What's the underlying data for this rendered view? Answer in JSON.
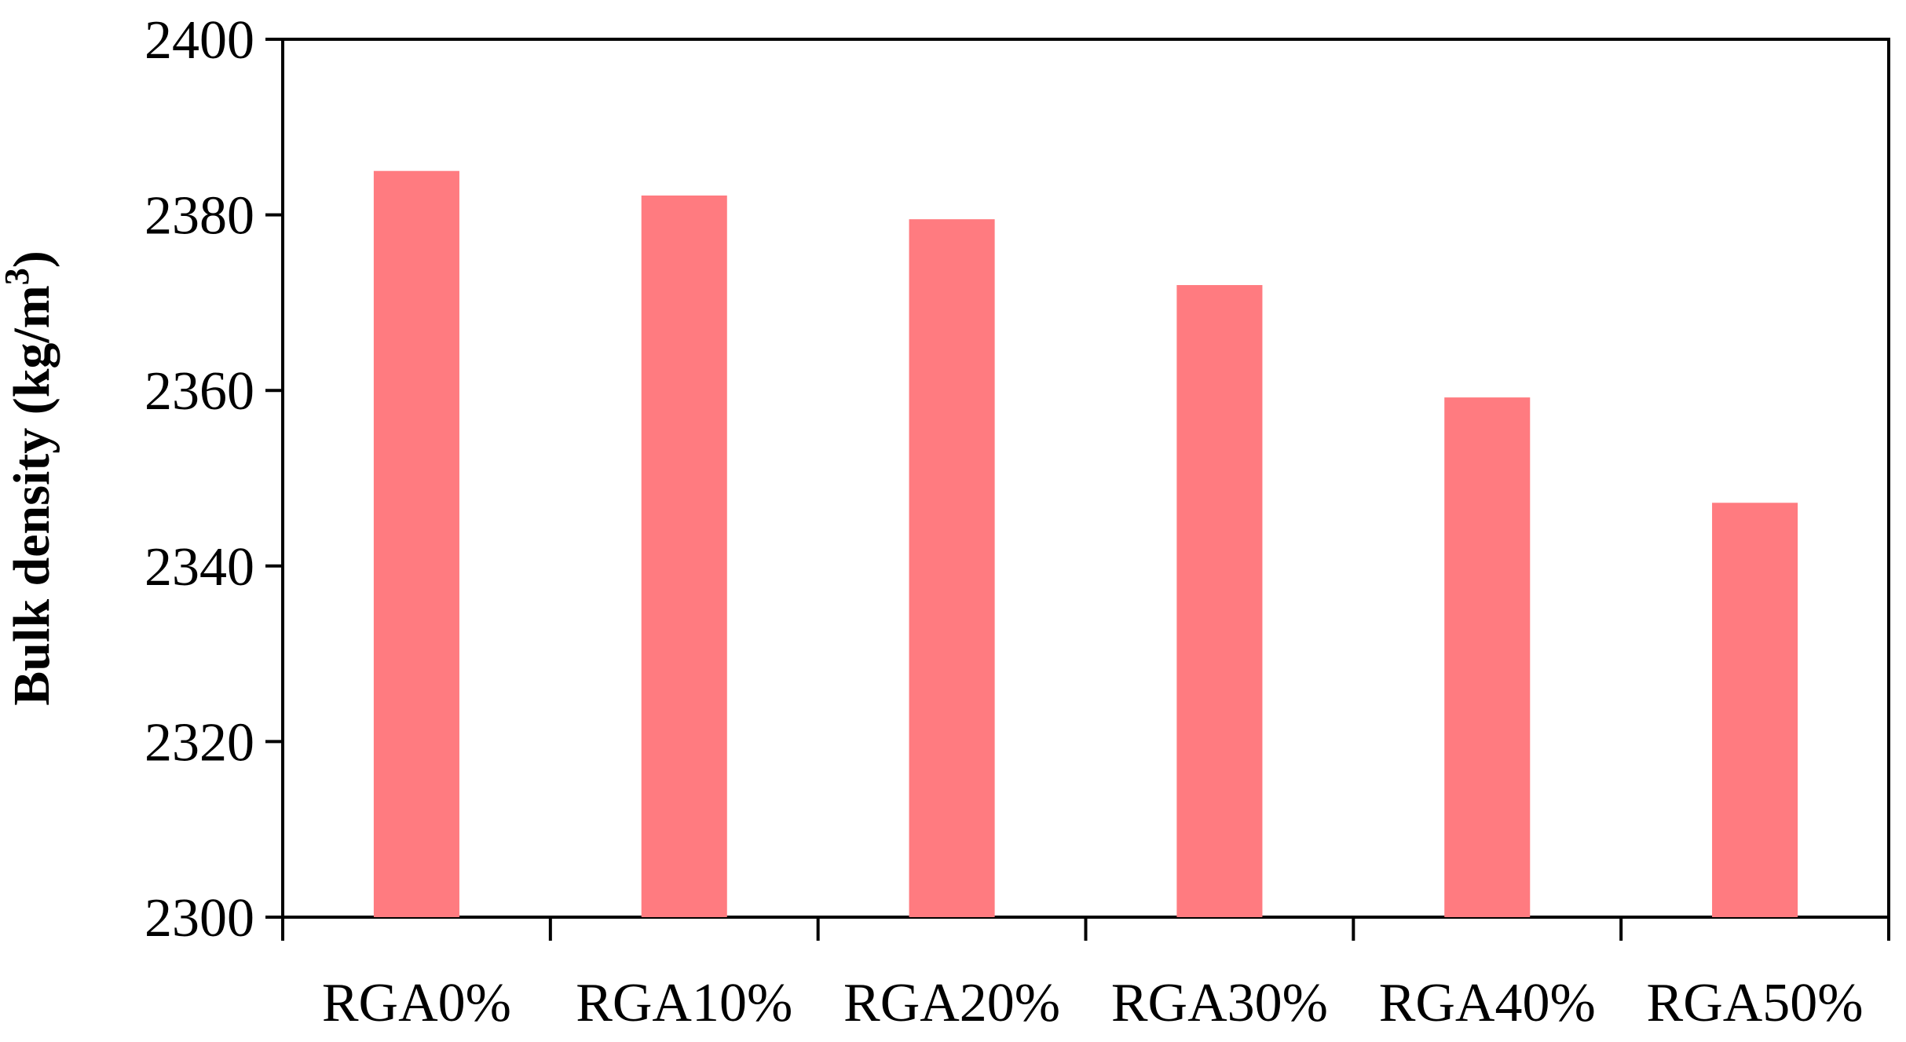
{
  "chart_data": {
    "type": "bar",
    "categories": [
      "RGA0%",
      "RGA10%",
      "RGA20%",
      "RGA30%",
      "RGA40%",
      "RGA50%"
    ],
    "values": [
      2385,
      2382.2,
      2379.5,
      2372,
      2359.2,
      2347.2
    ],
    "xlabel": "",
    "ylabel": "Bulk density (kg/m",
    "ylabel_superscript": "3",
    "ylabel_suffix": ")",
    "ylim": [
      2300,
      2400
    ],
    "yticks": [
      2300,
      2320,
      2340,
      2360,
      2380,
      2400
    ],
    "bar_color": "#ff7b80",
    "grid": false,
    "legend": "none"
  }
}
